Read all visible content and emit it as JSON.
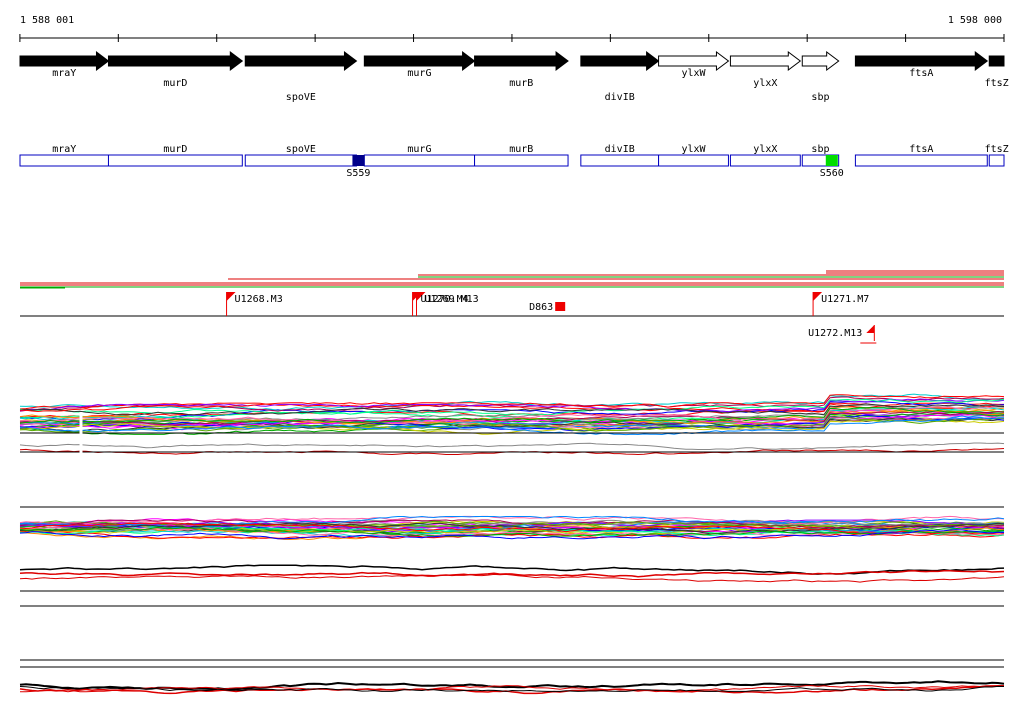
{
  "ruler": {
    "start_label": "1 588 001",
    "end_label": "1 598 000",
    "start_coord": 1588001,
    "end_coord": 1598000
  },
  "genes": [
    {
      "name": "mraY",
      "start": 1588001,
      "end": 1588900,
      "filled": true,
      "partial_left": true
    },
    {
      "name": "murD",
      "start": 1588900,
      "end": 1590260,
      "filled": true
    },
    {
      "name": "spoVE",
      "start": 1590290,
      "end": 1591420,
      "filled": true
    },
    {
      "name": "murG",
      "start": 1591500,
      "end": 1592620,
      "filled": true
    },
    {
      "name": "murB",
      "start": 1592620,
      "end": 1593570,
      "filled": true
    },
    {
      "name": "divIB",
      "start": 1593700,
      "end": 1594490,
      "filled": true
    },
    {
      "name": "ylxW",
      "start": 1594490,
      "end": 1595200,
      "filled": false
    },
    {
      "name": "ylxX",
      "start": 1595220,
      "end": 1595930,
      "filled": false
    },
    {
      "name": "sbp",
      "start": 1595950,
      "end": 1596320,
      "filled": false
    },
    {
      "name": "ftsA",
      "start": 1596490,
      "end": 1597830,
      "filled": true
    },
    {
      "name": "ftsZ",
      "start": 1597850,
      "end": 1598000,
      "filled": true,
      "partial_right": true
    }
  ],
  "gene_box_labels": [
    "mraY",
    "murD",
    "spoVE",
    "murG",
    "murB",
    "divIB",
    "ylxW",
    "ylxX",
    "sbp",
    "ftsA",
    "ftsZ"
  ],
  "sites": [
    {
      "label": "S559",
      "pos": 1591440,
      "color": "#00008b"
    },
    {
      "label": "S560",
      "pos": 1596250,
      "color": "#00dd00"
    }
  ],
  "features": [
    {
      "label": "U1268.M3",
      "pos": 1590100,
      "row": 1
    },
    {
      "label": "U1269.M13",
      "pos": 1592030,
      "row": 1
    },
    {
      "label": "U1270.M4",
      "pos": 1591990,
      "row": 1
    },
    {
      "label": "U1271.M7",
      "pos": 1596060,
      "row": 1
    },
    {
      "label": "U1272.M13",
      "pos": 1596540,
      "row": 2,
      "flag_left": true
    },
    {
      "label": "D863",
      "pos": 1593480,
      "row": 1,
      "box": true
    }
  ],
  "colors": {
    "gene_fill": "#000000",
    "gene_box_stroke": "#0000c0",
    "feature_red": "#ee0000",
    "tx_red": "#dd0000",
    "tx_green": "#00aa00"
  }
}
